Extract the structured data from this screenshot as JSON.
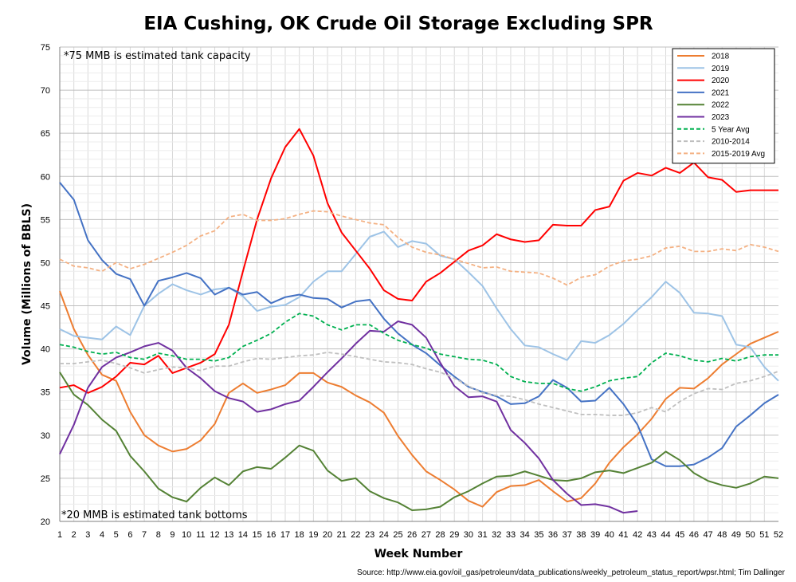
{
  "chart_data": {
    "type": "line",
    "title": "EIA Cushing, OK Crude Oil Storage Excluding SPR",
    "xlabel": "Week Number",
    "ylabel": "Volume (Millions of BBLS)",
    "xlim": [
      1,
      52
    ],
    "ylim": [
      20,
      75
    ],
    "y_ticks": [
      20,
      25,
      30,
      35,
      40,
      45,
      50,
      55,
      60,
      65,
      70,
      75
    ],
    "x_ticks": [
      1,
      2,
      3,
      4,
      5,
      6,
      7,
      8,
      9,
      10,
      11,
      12,
      13,
      14,
      15,
      16,
      17,
      18,
      19,
      20,
      21,
      22,
      23,
      24,
      25,
      26,
      27,
      28,
      29,
      30,
      31,
      32,
      33,
      34,
      35,
      36,
      37,
      38,
      39,
      40,
      41,
      42,
      43,
      44,
      45,
      46,
      47,
      48,
      49,
      50,
      51,
      52
    ],
    "grid": true,
    "legend_position": "top-right",
    "annotations": {
      "capacity": "*75 MMB is estimated tank capacity",
      "bottoms": "*20 MMB is estimated tank bottoms"
    },
    "source": "Source: http://www.eia.gov/oil_gas/petroleum/data_publications/weekly_petroleum_status_report/wpsr.html; Tim Dallinger",
    "series": [
      {
        "name": "2018",
        "color": "#ED7D31",
        "dash": "solid",
        "values": [
          46.7,
          42.3,
          39.3,
          37.0,
          36.3,
          32.7,
          30.0,
          28.8,
          28.1,
          28.4,
          29.4,
          31.3,
          34.9,
          36.0,
          34.9,
          35.3,
          35.8,
          37.2,
          37.2,
          36.1,
          35.6,
          34.6,
          33.8,
          32.6,
          29.9,
          27.7,
          25.8,
          24.8,
          23.7,
          22.4,
          21.7,
          23.4,
          24.1,
          24.2,
          24.8,
          23.5,
          22.3,
          22.7,
          24.4,
          26.8,
          28.6,
          30.1,
          31.9,
          34.2,
          35.5,
          35.4,
          36.6,
          38.2,
          39.4,
          40.6,
          41.3,
          42.0
        ]
      },
      {
        "name": "2019",
        "color": "#9DC3E6",
        "dash": "solid",
        "values": [
          42.3,
          41.5,
          41.3,
          41.1,
          42.6,
          41.6,
          45.0,
          46.4,
          47.5,
          46.8,
          46.3,
          46.9,
          47.1,
          46.1,
          44.4,
          44.9,
          45.1,
          46.0,
          47.8,
          49.0,
          49.0,
          51.0,
          53.0,
          53.6,
          51.8,
          52.5,
          52.2,
          50.8,
          50.4,
          48.9,
          47.3,
          44.7,
          42.3,
          40.4,
          40.2,
          39.4,
          38.7,
          40.9,
          40.7,
          41.6,
          42.9,
          44.5,
          46.0,
          47.8,
          46.5,
          44.2,
          44.1,
          43.8,
          40.5,
          40.2,
          37.9,
          36.3
        ]
      },
      {
        "name": "2020",
        "color": "#FF0000",
        "dash": "solid",
        "values": [
          35.5,
          35.8,
          34.9,
          35.6,
          36.8,
          38.4,
          38.2,
          39.2,
          37.2,
          37.8,
          38.4,
          39.4,
          42.8,
          49.0,
          55.0,
          59.8,
          63.4,
          65.5,
          62.4,
          56.9,
          53.5,
          51.4,
          49.3,
          46.8,
          45.8,
          45.6,
          47.8,
          48.8,
          50.1,
          51.4,
          52.0,
          53.3,
          52.7,
          52.4,
          52.6,
          54.4,
          54.3,
          54.3,
          56.1,
          56.5,
          59.5,
          60.4,
          60.1,
          61.0,
          60.4,
          61.6,
          59.9,
          59.6,
          58.2,
          58.4,
          58.4,
          58.4
        ]
      },
      {
        "name": "2021",
        "color": "#4472C4",
        "dash": "solid",
        "values": [
          59.3,
          57.3,
          52.6,
          50.3,
          48.7,
          48.1,
          45.0,
          47.9,
          48.3,
          48.8,
          48.2,
          46.3,
          47.1,
          46.3,
          46.6,
          45.3,
          46.0,
          46.3,
          45.9,
          45.8,
          44.8,
          45.5,
          45.7,
          43.5,
          41.8,
          40.5,
          39.5,
          38.1,
          36.8,
          35.6,
          35.0,
          34.5,
          33.6,
          33.7,
          34.5,
          36.4,
          35.5,
          33.9,
          34.0,
          35.5,
          33.6,
          31.2,
          27.2,
          26.4,
          26.4,
          26.6,
          27.4,
          28.5,
          31.0,
          32.3,
          33.7,
          34.7
        ]
      },
      {
        "name": "2022",
        "color": "#548235",
        "dash": "solid",
        "values": [
          37.3,
          34.7,
          33.5,
          31.8,
          30.5,
          27.6,
          25.8,
          23.8,
          22.8,
          22.3,
          23.9,
          25.1,
          24.2,
          25.8,
          26.3,
          26.1,
          27.4,
          28.8,
          28.2,
          25.9,
          24.7,
          25.0,
          23.5,
          22.7,
          22.2,
          21.3,
          21.4,
          21.7,
          22.8,
          23.5,
          24.4,
          25.2,
          25.3,
          25.8,
          25.3,
          24.8,
          24.7,
          25.0,
          25.7,
          25.9,
          25.6,
          26.2,
          26.8,
          28.1,
          27.1,
          25.6,
          24.7,
          24.2,
          23.9,
          24.4,
          25.2,
          25.0
        ]
      },
      {
        "name": "2023",
        "color": "#7030A0",
        "dash": "solid",
        "values": [
          27.8,
          31.2,
          35.5,
          37.9,
          39.0,
          39.6,
          40.3,
          40.7,
          39.8,
          37.8,
          36.6,
          35.1,
          34.3,
          33.9,
          32.7,
          33.0,
          33.6,
          34.0,
          35.6,
          37.3,
          38.9,
          40.6,
          42.1,
          42.0,
          43.2,
          42.8,
          41.3,
          38.4,
          35.7,
          34.4,
          34.5,
          33.9,
          30.6,
          29.1,
          27.3,
          24.8,
          23.2,
          21.9,
          22.0,
          21.7,
          21.0,
          21.2
        ]
      },
      {
        "name": "5 Year Avg",
        "color": "#00B050",
        "dash": "dashed",
        "values": [
          40.5,
          40.2,
          39.7,
          39.4,
          39.6,
          39.0,
          38.8,
          39.5,
          39.2,
          38.8,
          38.8,
          38.6,
          39.0,
          40.3,
          41.0,
          41.8,
          43.1,
          44.1,
          43.8,
          42.8,
          42.2,
          42.8,
          42.8,
          41.8,
          41.0,
          40.5,
          40.1,
          39.4,
          39.1,
          38.8,
          38.7,
          38.2,
          36.8,
          36.2,
          36.0,
          36.0,
          35.4,
          35.1,
          35.6,
          36.3,
          36.6,
          36.8,
          38.4,
          39.5,
          39.2,
          38.7,
          38.5,
          38.9,
          38.6,
          39.1,
          39.3,
          39.3
        ]
      },
      {
        "name": "2010-2014",
        "color": "#BFBFBF",
        "dash": "dashed",
        "values": [
          38.3,
          38.3,
          38.5,
          38.7,
          38.3,
          37.8,
          37.2,
          37.6,
          37.9,
          37.8,
          37.5,
          38.0,
          38.0,
          38.5,
          38.9,
          38.8,
          39.0,
          39.2,
          39.3,
          39.6,
          39.4,
          39.1,
          38.8,
          38.5,
          38.4,
          38.2,
          37.7,
          37.3,
          36.6,
          35.7,
          34.9,
          34.6,
          34.5,
          34.1,
          33.6,
          33.2,
          32.8,
          32.4,
          32.4,
          32.3,
          32.3,
          32.6,
          33.2,
          32.7,
          33.9,
          34.8,
          35.4,
          35.3,
          36.0,
          36.3,
          36.8,
          37.4
        ]
      },
      {
        "name": "2015-2019 Avg",
        "color": "#F4B183",
        "dash": "dashed",
        "values": [
          50.4,
          49.6,
          49.4,
          49.0,
          50.0,
          49.3,
          49.8,
          50.5,
          51.2,
          52.0,
          53.1,
          53.7,
          55.3,
          55.6,
          54.9,
          54.9,
          55.1,
          55.6,
          56.0,
          55.9,
          55.4,
          55.0,
          54.6,
          54.4,
          52.9,
          51.8,
          51.2,
          50.9,
          50.4,
          49.9,
          49.4,
          49.5,
          49.0,
          48.9,
          48.8,
          48.2,
          47.4,
          48.3,
          48.6,
          49.6,
          50.2,
          50.4,
          50.8,
          51.7,
          51.9,
          51.3,
          51.3,
          51.6,
          51.4,
          52.1,
          51.8,
          51.3
        ]
      }
    ]
  }
}
